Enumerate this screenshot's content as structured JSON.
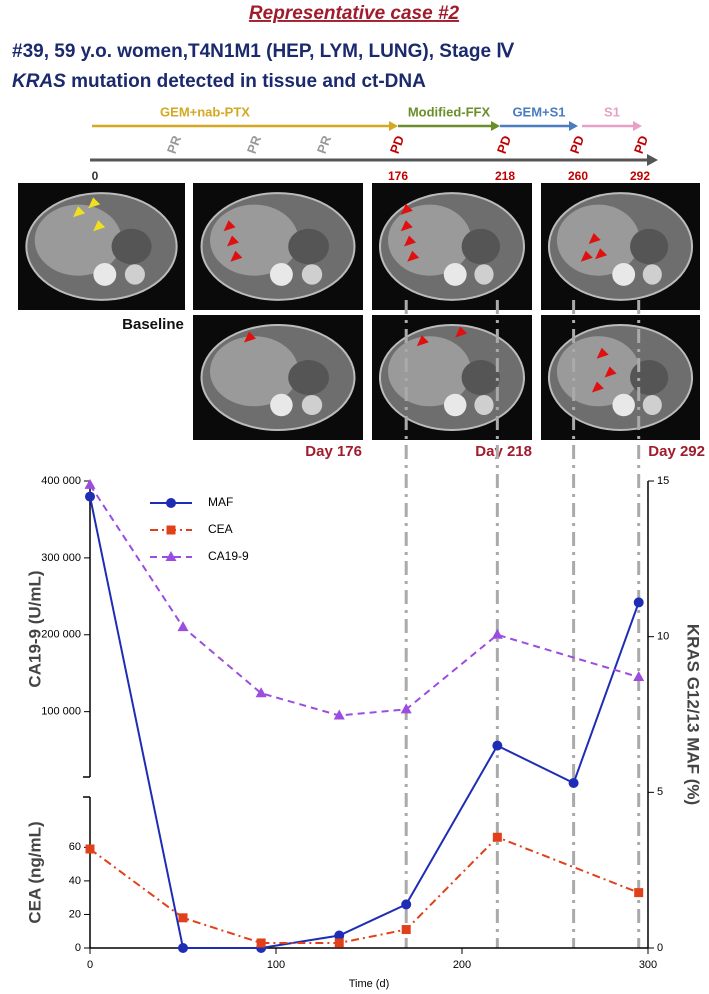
{
  "header": {
    "title": "Representative case #2",
    "line1": "#39, 59 y.o. women,T4N1M1 (HEP, LYM, LUNG), Stage Ⅳ",
    "gene": "KRAS",
    "line2": "mutation detected in tissue and ct-DNA"
  },
  "timeline": {
    "regimens": [
      "GEM+nab-PTX",
      "Modified-FFX",
      "GEM+S1",
      "S1"
    ],
    "responses": [
      "PR",
      "PR",
      "PR",
      "PD",
      "PD",
      "PD",
      "PD"
    ],
    "days": [
      0,
      176,
      218,
      260,
      292
    ]
  },
  "captions": [
    "Baseline",
    "Day 176",
    "Day 218",
    "Day 292"
  ],
  "chart_data": {
    "type": "line",
    "xlabel": "Time (d)",
    "xlim": [
      0,
      300
    ],
    "xticks": [
      0,
      100,
      200,
      300
    ],
    "ylabel": "CA19-9 (U/mL)",
    "ylim": [
      15000,
      400000
    ],
    "yticks": [
      {
        "value": 100000,
        "label": "100 000"
      },
      {
        "value": 200000,
        "label": "200 000"
      },
      {
        "value": 300000,
        "label": "300 000"
      },
      {
        "value": 400000,
        "label": "400 000"
      }
    ],
    "y3label": "CEA (ng/mL)",
    "y3lim": [
      0,
      90
    ],
    "y3ticks": [
      0,
      20,
      40,
      60
    ],
    "y2label": "KRAS G12/13 MAF (%)",
    "y2lim": [
      0,
      15
    ],
    "y2ticks": [
      0,
      5,
      10,
      15
    ],
    "vlines": [
      170,
      219,
      260,
      295
    ],
    "legend": "upper left",
    "series": [
      {
        "name": "MAF",
        "color": "#1f2db5",
        "axis": "y2",
        "marker": "circle",
        "dash": "solid",
        "x": [
          0,
          50,
          92,
          134,
          170,
          219,
          260,
          295
        ],
        "values": [
          14.5,
          0,
          0,
          0.4,
          1.4,
          6.5,
          5.3,
          11.1
        ]
      },
      {
        "name": "CEA",
        "color": "#e0401a",
        "axis": "y3",
        "marker": "square",
        "dash": "dashdot",
        "x": [
          0,
          50,
          92,
          134,
          170,
          219,
          295
        ],
        "values": [
          59,
          18,
          3,
          3,
          11,
          66,
          33
        ]
      },
      {
        "name": "CA19-9",
        "color": "#9b4de0",
        "axis": "y",
        "marker": "triangle",
        "dash": "dashed",
        "x": [
          0,
          50,
          92,
          134,
          170,
          219,
          295
        ],
        "values": [
          395000,
          210000,
          124000,
          95000,
          103000,
          200000,
          145000
        ]
      }
    ]
  }
}
